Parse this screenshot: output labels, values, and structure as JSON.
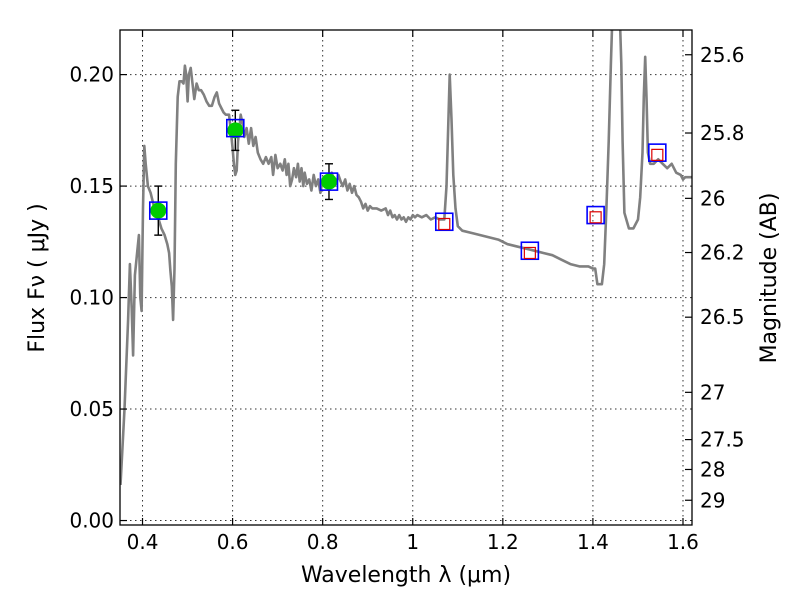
{
  "chart_data": {
    "type": "scatter",
    "xlabel": "Wavelength  λ (μm)",
    "ylabel": "Flux  Fν  ( μJy )",
    "ylabel_right": "Magnitude (AB)",
    "xlim": [
      0.35,
      1.62
    ],
    "ylim": [
      -0.002,
      0.22
    ],
    "x_ticks": [
      0.4,
      0.6,
      0.8,
      1.0,
      1.2,
      1.4,
      1.6
    ],
    "x_tick_labels": [
      "0.4",
      "0.6",
      "0.8",
      "1",
      "1.2",
      "1.4",
      "1.6"
    ],
    "y_ticks": [
      0.0,
      0.05,
      0.1,
      0.15,
      0.2
    ],
    "y_tick_labels": [
      "0.00",
      "0.05",
      "0.10",
      "0.15",
      "0.20"
    ],
    "right_ticks": [
      {
        "flux": 0.2089,
        "label": "25.6"
      },
      {
        "flux": 0.1738,
        "label": "25.8"
      },
      {
        "flux": 0.1445,
        "label": "26"
      },
      {
        "flux": 0.1202,
        "label": "26.2"
      },
      {
        "flux": 0.0912,
        "label": "26.5"
      },
      {
        "flux": 0.0575,
        "label": "27"
      },
      {
        "flux": 0.0363,
        "label": "27.5"
      },
      {
        "flux": 0.0229,
        "label": "28"
      },
      {
        "flux": 0.0091,
        "label": "29"
      }
    ],
    "grid": true,
    "series": [
      {
        "kind": "line",
        "color": "#808080",
        "points": [
          [
            0.351,
            0.016
          ],
          [
            0.36,
            0.05
          ],
          [
            0.368,
            0.09
          ],
          [
            0.372,
            0.115
          ],
          [
            0.376,
            0.095
          ],
          [
            0.379,
            0.074
          ],
          [
            0.383,
            0.11
          ],
          [
            0.388,
            0.12
          ],
          [
            0.392,
            0.128
          ],
          [
            0.395,
            0.1
          ],
          [
            0.398,
            0.094
          ],
          [
            0.401,
            0.14
          ],
          [
            0.404,
            0.168
          ],
          [
            0.407,
            0.16
          ],
          [
            0.412,
            0.15
          ],
          [
            0.418,
            0.147
          ],
          [
            0.424,
            0.142
          ],
          [
            0.43,
            0.139
          ],
          [
            0.436,
            0.135
          ],
          [
            0.442,
            0.131
          ],
          [
            0.449,
            0.128
          ],
          [
            0.455,
            0.124
          ],
          [
            0.459,
            0.12
          ],
          [
            0.462,
            0.112
          ],
          [
            0.465,
            0.105
          ],
          [
            0.468,
            0.09
          ],
          [
            0.471,
            0.113
          ],
          [
            0.474,
            0.16
          ],
          [
            0.478,
            0.19
          ],
          [
            0.482,
            0.197
          ],
          [
            0.487,
            0.197
          ],
          [
            0.491,
            0.196
          ],
          [
            0.494,
            0.204
          ],
          [
            0.497,
            0.2
          ],
          [
            0.5,
            0.188
          ],
          [
            0.503,
            0.2
          ],
          [
            0.507,
            0.203
          ],
          [
            0.511,
            0.196
          ],
          [
            0.515,
            0.189
          ],
          [
            0.52,
            0.196
          ],
          [
            0.525,
            0.193
          ],
          [
            0.53,
            0.193
          ],
          [
            0.536,
            0.191
          ],
          [
            0.542,
            0.188
          ],
          [
            0.548,
            0.186
          ],
          [
            0.554,
            0.186
          ],
          [
            0.56,
            0.19
          ],
          [
            0.565,
            0.192
          ],
          [
            0.57,
            0.187
          ],
          [
            0.575,
            0.185
          ],
          [
            0.58,
            0.183
          ],
          [
            0.585,
            0.182
          ],
          [
            0.592,
            0.182
          ],
          [
            0.596,
            0.175
          ],
          [
            0.6,
            0.167
          ],
          [
            0.603,
            0.16
          ],
          [
            0.606,
            0.155
          ],
          [
            0.609,
            0.157
          ],
          [
            0.612,
            0.17
          ],
          [
            0.615,
            0.176
          ],
          [
            0.618,
            0.182
          ],
          [
            0.622,
            0.178
          ],
          [
            0.626,
            0.172
          ],
          [
            0.631,
            0.176
          ],
          [
            0.636,
            0.169
          ],
          [
            0.641,
            0.176
          ],
          [
            0.646,
            0.168
          ],
          [
            0.651,
            0.172
          ],
          [
            0.656,
            0.165
          ],
          [
            0.662,
            0.162
          ],
          [
            0.668,
            0.16
          ],
          [
            0.674,
            0.163
          ],
          [
            0.68,
            0.16
          ],
          [
            0.686,
            0.163
          ],
          [
            0.69,
            0.155
          ],
          [
            0.695,
            0.164
          ],
          [
            0.7,
            0.158
          ],
          [
            0.706,
            0.16
          ],
          [
            0.711,
            0.157
          ],
          [
            0.716,
            0.162
          ],
          [
            0.72,
            0.155
          ],
          [
            0.724,
            0.16
          ],
          [
            0.728,
            0.15
          ],
          [
            0.732,
            0.153
          ],
          [
            0.736,
            0.158
          ],
          [
            0.741,
            0.154
          ],
          [
            0.745,
            0.16
          ],
          [
            0.749,
            0.152
          ],
          [
            0.753,
            0.158
          ],
          [
            0.757,
            0.15
          ],
          [
            0.76,
            0.156
          ],
          [
            0.765,
            0.151
          ],
          [
            0.77,
            0.153
          ],
          [
            0.775,
            0.148
          ],
          [
            0.78,
            0.155
          ],
          [
            0.785,
            0.15
          ],
          [
            0.79,
            0.153
          ],
          [
            0.795,
            0.147
          ],
          [
            0.8,
            0.153
          ],
          [
            0.805,
            0.15
          ],
          [
            0.81,
            0.152
          ],
          [
            0.815,
            0.154
          ],
          [
            0.82,
            0.156
          ],
          [
            0.825,
            0.153
          ],
          [
            0.83,
            0.151
          ],
          [
            0.835,
            0.155
          ],
          [
            0.84,
            0.152
          ],
          [
            0.845,
            0.15
          ],
          [
            0.85,
            0.153
          ],
          [
            0.855,
            0.148
          ],
          [
            0.86,
            0.151
          ],
          [
            0.865,
            0.147
          ],
          [
            0.87,
            0.15
          ],
          [
            0.875,
            0.146
          ],
          [
            0.88,
            0.145
          ],
          [
            0.885,
            0.143
          ],
          [
            0.89,
            0.14
          ],
          [
            0.895,
            0.142
          ],
          [
            0.9,
            0.139
          ],
          [
            0.905,
            0.141
          ],
          [
            0.91,
            0.14
          ],
          [
            0.92,
            0.14
          ],
          [
            0.93,
            0.139
          ],
          [
            0.94,
            0.14
          ],
          [
            0.945,
            0.137
          ],
          [
            0.95,
            0.139
          ],
          [
            0.955,
            0.136
          ],
          [
            0.96,
            0.137
          ],
          [
            0.965,
            0.135
          ],
          [
            0.97,
            0.137
          ],
          [
            0.975,
            0.135
          ],
          [
            0.98,
            0.136
          ],
          [
            0.985,
            0.134
          ],
          [
            0.99,
            0.136
          ],
          [
            0.995,
            0.135
          ],
          [
            1.0,
            0.137
          ],
          [
            1.005,
            0.136
          ],
          [
            1.01,
            0.137
          ],
          [
            1.02,
            0.136
          ],
          [
            1.03,
            0.137
          ],
          [
            1.04,
            0.135
          ],
          [
            1.05,
            0.136
          ],
          [
            1.06,
            0.135
          ],
          [
            1.07,
            0.135
          ],
          [
            1.075,
            0.15
          ],
          [
            1.079,
            0.178
          ],
          [
            1.082,
            0.2
          ],
          [
            1.086,
            0.18
          ],
          [
            1.09,
            0.155
          ],
          [
            1.095,
            0.14
          ],
          [
            1.1,
            0.132
          ],
          [
            1.11,
            0.13
          ],
          [
            1.13,
            0.129
          ],
          [
            1.15,
            0.128
          ],
          [
            1.17,
            0.127
          ],
          [
            1.19,
            0.126
          ],
          [
            1.21,
            0.124
          ],
          [
            1.23,
            0.123
          ],
          [
            1.25,
            0.122
          ],
          [
            1.27,
            0.121
          ],
          [
            1.29,
            0.12
          ],
          [
            1.31,
            0.119
          ],
          [
            1.33,
            0.117
          ],
          [
            1.35,
            0.115
          ],
          [
            1.37,
            0.114
          ],
          [
            1.39,
            0.114
          ],
          [
            1.4,
            0.113
          ],
          [
            1.405,
            0.113
          ],
          [
            1.41,
            0.106
          ],
          [
            1.415,
            0.106
          ],
          [
            1.42,
            0.106
          ],
          [
            1.425,
            0.115
          ],
          [
            1.43,
            0.14
          ],
          [
            1.435,
            0.17
          ],
          [
            1.44,
            0.205
          ],
          [
            1.443,
            0.225
          ],
          [
            1.46,
            0.225
          ],
          [
            1.463,
            0.205
          ],
          [
            1.466,
            0.17
          ],
          [
            1.47,
            0.138
          ],
          [
            1.48,
            0.131
          ],
          [
            1.49,
            0.131
          ],
          [
            1.5,
            0.135
          ],
          [
            1.505,
            0.145
          ],
          [
            1.51,
            0.165
          ],
          [
            1.513,
            0.19
          ],
          [
            1.516,
            0.208
          ],
          [
            1.519,
            0.19
          ],
          [
            1.522,
            0.165
          ],
          [
            1.527,
            0.16
          ],
          [
            1.535,
            0.16
          ],
          [
            1.545,
            0.162
          ],
          [
            1.555,
            0.16
          ],
          [
            1.565,
            0.158
          ],
          [
            1.575,
            0.16
          ],
          [
            1.585,
            0.156
          ],
          [
            1.595,
            0.155
          ],
          [
            1.6,
            0.153
          ],
          [
            1.605,
            0.154
          ],
          [
            1.612,
            0.154
          ],
          [
            1.62,
            0.154
          ]
        ]
      },
      {
        "kind": "observed",
        "color": "#00cc00",
        "points": [
          {
            "x": 0.435,
            "y": 0.139,
            "err": 0.011
          },
          {
            "x": 0.606,
            "y": 0.175,
            "err": 0.009
          },
          {
            "x": 0.814,
            "y": 0.152,
            "err": 0.008
          }
        ]
      },
      {
        "kind": "model_box",
        "color": "#0000ff",
        "points": [
          {
            "x": 0.435,
            "y": 0.139
          },
          {
            "x": 0.606,
            "y": 0.176
          },
          {
            "x": 0.814,
            "y": 0.152
          },
          {
            "x": 1.07,
            "y": 0.134
          },
          {
            "x": 1.26,
            "y": 0.121
          },
          {
            "x": 1.406,
            "y": 0.137
          },
          {
            "x": 1.543,
            "y": 0.165
          }
        ]
      },
      {
        "kind": "upper_limit_box",
        "color": "#dd0000",
        "points": [
          {
            "x": 1.07,
            "y": 0.133
          },
          {
            "x": 1.26,
            "y": 0.12
          },
          {
            "x": 1.406,
            "y": 0.136
          },
          {
            "x": 1.543,
            "y": 0.164
          }
        ]
      }
    ]
  }
}
